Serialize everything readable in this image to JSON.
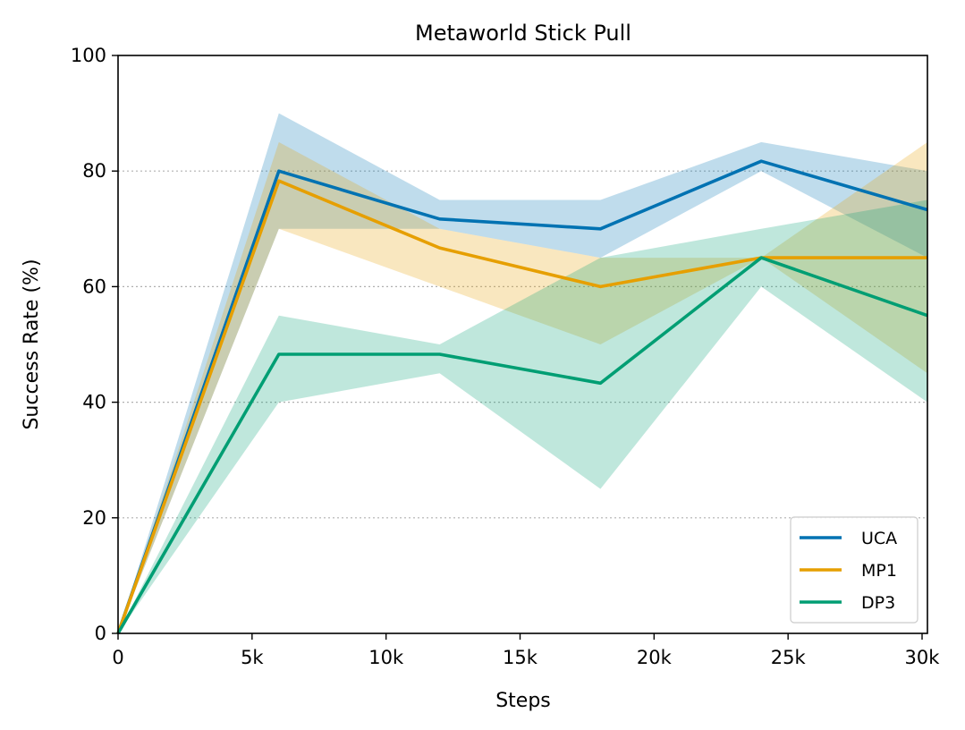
{
  "chart_data": {
    "type": "line",
    "title": "Metaworld Stick Pull",
    "xlabel": "Steps",
    "ylabel": "Success Rate (%)",
    "xlim": [
      0,
      30200
    ],
    "ylim": [
      0,
      100
    ],
    "xticks": [
      0,
      5000,
      10000,
      15000,
      20000,
      25000,
      30000
    ],
    "xtick_labels": [
      "0",
      "5k",
      "10k",
      "15k",
      "20k",
      "25k",
      "30k"
    ],
    "yticks": [
      0,
      20,
      40,
      60,
      80,
      100
    ],
    "ytick_labels": [
      "0",
      "20",
      "40",
      "60",
      "80",
      "100"
    ],
    "grid": "horizontal-dotted",
    "legend_position": "lower-right",
    "x": [
      0,
      6000,
      12000,
      18000,
      24000,
      30200
    ],
    "series": [
      {
        "name": "UCA",
        "color": "#0072b2",
        "values": [
          0,
          80,
          71.7,
          70,
          81.7,
          73.3
        ],
        "lower": [
          0,
          70,
          70,
          65,
          80,
          65
        ],
        "upper": [
          0,
          90,
          75,
          75,
          85,
          80
        ]
      },
      {
        "name": "MP1",
        "color": "#e69f00",
        "values": [
          0,
          78.3,
          66.7,
          60,
          65,
          65
        ],
        "lower": [
          0,
          70,
          60,
          50,
          65,
          45
        ],
        "upper": [
          0,
          85,
          70,
          65,
          65,
          85
        ]
      },
      {
        "name": "DP3",
        "color": "#009e73",
        "values": [
          0,
          48.3,
          48.3,
          43.3,
          65,
          55
        ],
        "lower": [
          0,
          40,
          45,
          25,
          60,
          40
        ],
        "upper": [
          0,
          55,
          50,
          65,
          70,
          75
        ]
      }
    ]
  }
}
